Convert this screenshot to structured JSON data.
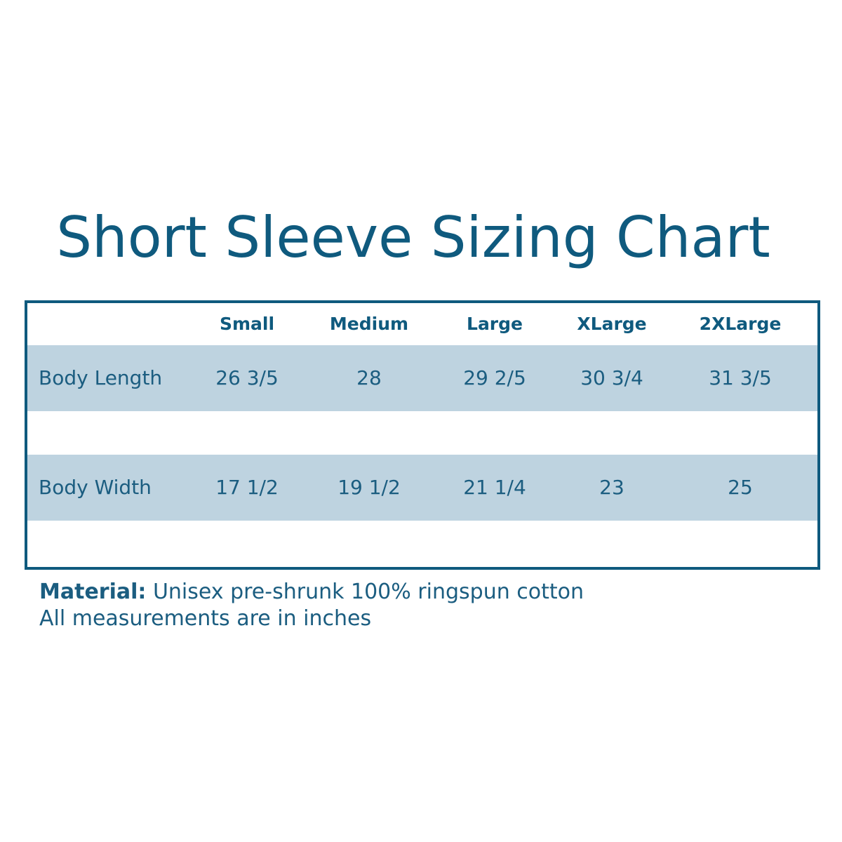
{
  "title": "Short Sleeve Sizing Chart",
  "table": {
    "columns": [
      "Small",
      "Medium",
      "Large",
      "XLarge",
      "2XLarge"
    ],
    "rows": [
      {
        "label": "Body Length",
        "values": [
          "26 3/5",
          "28",
          "29 2/5",
          "30 3/4",
          "31 3/5"
        ]
      },
      {
        "label": "Body Width",
        "values": [
          "17 1/2",
          "19 1/2",
          "21 1/4",
          "23",
          "25"
        ]
      }
    ]
  },
  "notes": {
    "material_label": "Material:",
    "material_text": "Unisex pre-shrunk 100% ringspun cotton",
    "units": "All measurements are in inches"
  }
}
